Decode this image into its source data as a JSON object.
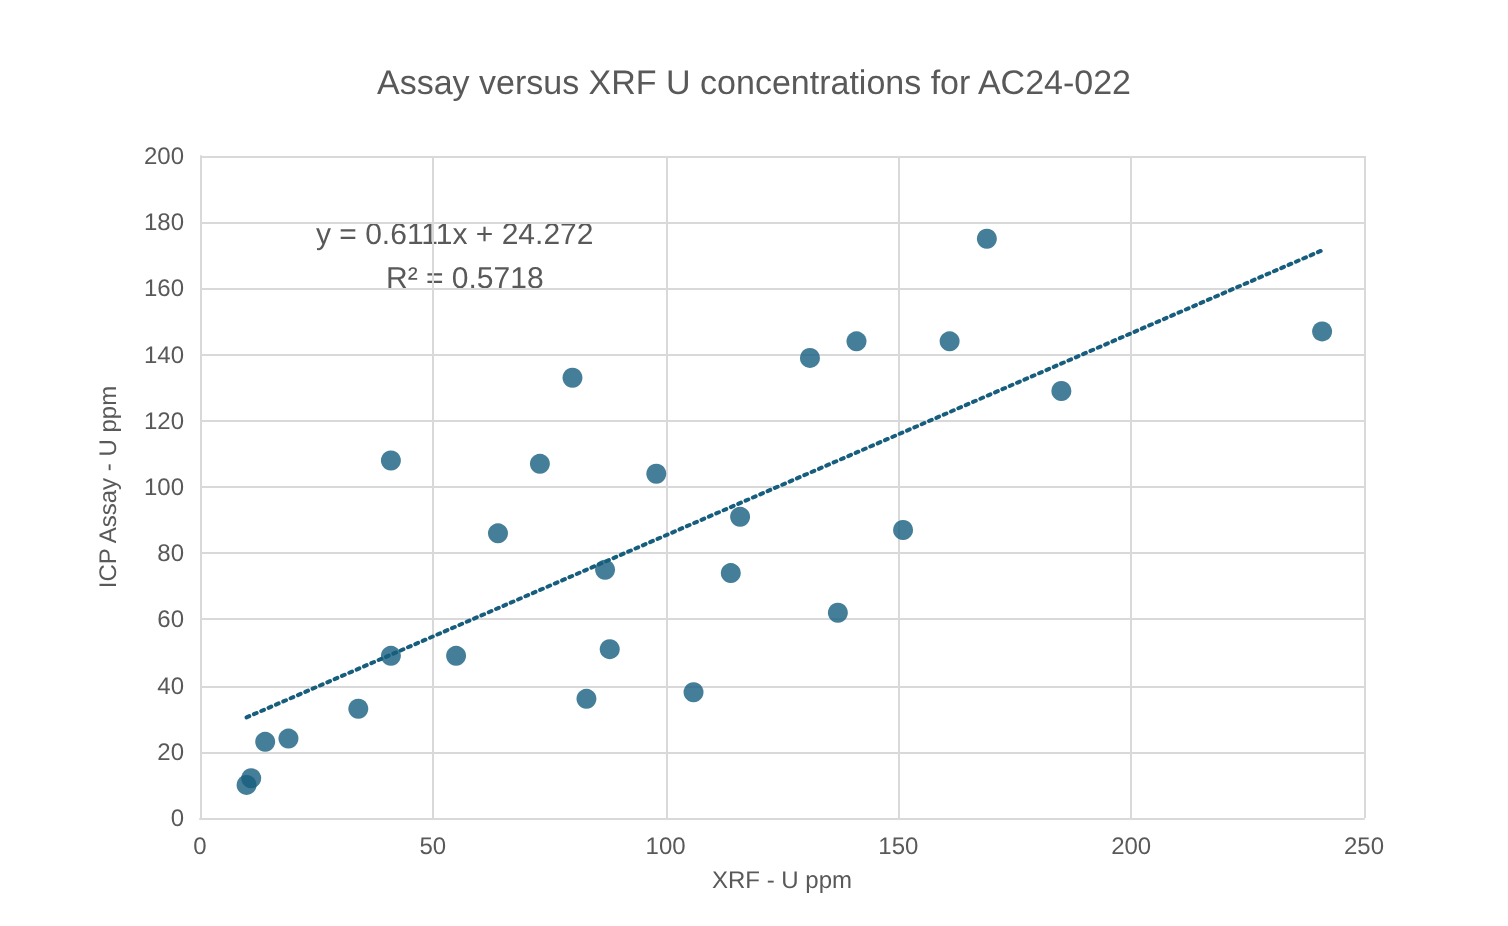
{
  "chart_data": {
    "type": "scatter",
    "title": "Assay versus XRF U concentrations for AC24-022",
    "xlabel": "XRF - U ppm",
    "ylabel": "ICP Assay - U ppm",
    "annotations": [
      "y = 0.6111x + 24.272",
      "R² = 0.5718"
    ],
    "series": [
      {
        "type": "scatter",
        "color": "#175e7e",
        "marker": "circle",
        "x": [
          10,
          11,
          14,
          19,
          34,
          41,
          41,
          55,
          64,
          73,
          80,
          83,
          87,
          88,
          98,
          106,
          114,
          116,
          131,
          137,
          141,
          151,
          161,
          169,
          185,
          241
        ],
        "values": [
          10,
          12,
          23,
          24,
          33,
          49,
          108,
          49,
          86,
          107,
          133,
          36,
          75,
          51,
          104,
          38,
          74,
          91,
          139,
          62,
          144,
          87,
          144,
          175,
          129,
          147
        ]
      },
      {
        "type": "line",
        "color": "#175e7e",
        "line_style": "dotted",
        "marker": "none",
        "x": [
          10,
          241
        ],
        "values": [
          30.4,
          171.5
        ]
      }
    ],
    "xlim": [
      0,
      250
    ],
    "xticks": [
      0,
      50,
      100,
      150,
      200,
      250
    ],
    "ylim": [
      0,
      200
    ],
    "yticks": [
      0,
      20,
      40,
      60,
      80,
      100,
      120,
      140,
      160,
      180,
      200
    ],
    "grid": true
  }
}
